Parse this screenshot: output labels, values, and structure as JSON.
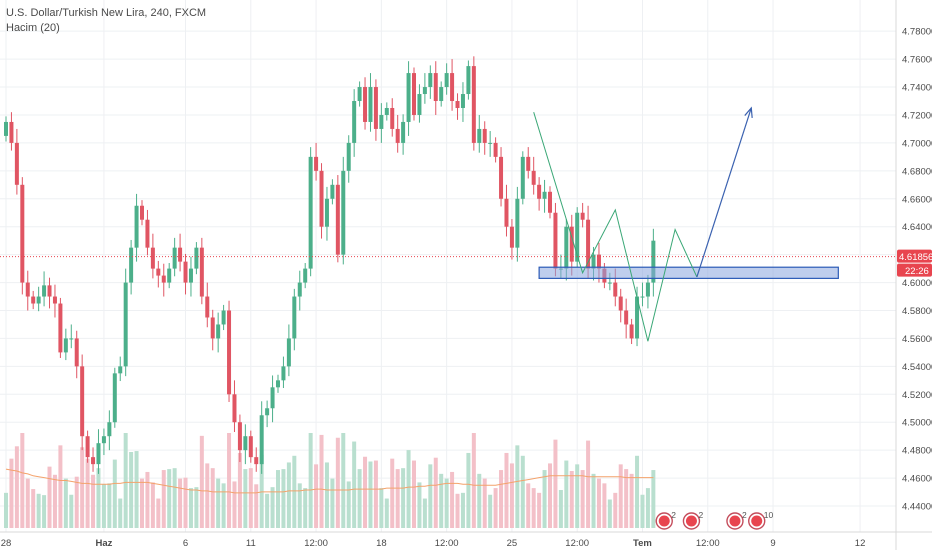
{
  "header": {
    "title": "U.S. Dollar/Turkish New Lira, 240, FXCM",
    "volume_label": "Hacim (20)"
  },
  "chart_data": {
    "type": "candlestick",
    "title": "U.S. Dollar/Turkish New Lira, 240, FXCM",
    "ylim": [
      4.43,
      4.788
    ],
    "y_ticks": [
      4.44,
      4.46,
      4.48,
      4.5,
      4.52,
      4.54,
      4.56,
      4.58,
      4.6,
      4.62,
      4.64,
      4.66,
      4.68,
      4.7,
      4.72,
      4.74,
      4.76,
      4.78
    ],
    "x_ticks": [
      {
        "label": "28",
        "i": 0
      },
      {
        "label": "Haz",
        "i": 18
      },
      {
        "label": "6",
        "i": 33
      },
      {
        "label": "11",
        "i": 45
      },
      {
        "label": "12:00",
        "i": 57
      },
      {
        "label": "18",
        "i": 69
      },
      {
        "label": "12:00",
        "i": 81
      },
      {
        "label": "25",
        "i": 93
      },
      {
        "label": "12:00",
        "i": 105
      },
      {
        "label": "Tem",
        "i": 117
      },
      {
        "label": "12:00",
        "i": 129
      },
      {
        "label": "9",
        "i": 141
      },
      {
        "label": "12",
        "i": 157
      }
    ],
    "current_price": 4.61856,
    "price_tag": "4.61856",
    "countdown_tag": "22:26",
    "volume_ma_label": "Hacim (20)",
    "closes": [
      4.715,
      4.7,
      4.67,
      4.6,
      4.59,
      4.585,
      4.59,
      4.598,
      4.59,
      4.585,
      4.55,
      4.56,
      4.56,
      4.54,
      4.49,
      4.475,
      4.47,
      4.485,
      4.49,
      4.5,
      4.535,
      4.54,
      4.6,
      4.625,
      4.655,
      4.645,
      4.625,
      4.61,
      4.605,
      4.6,
      4.61,
      4.625,
      4.615,
      4.6,
      4.61,
      4.625,
      4.59,
      4.575,
      4.56,
      4.57,
      4.58,
      4.52,
      4.5,
      4.48,
      4.49,
      4.475,
      4.47,
      4.505,
      4.51,
      4.525,
      4.53,
      4.54,
      4.56,
      4.59,
      4.6,
      4.61,
      4.69,
      4.68,
      4.64,
      4.66,
      4.67,
      4.62,
      4.68,
      4.7,
      4.73,
      4.74,
      4.715,
      4.74,
      4.71,
      4.72,
      4.725,
      4.71,
      4.7,
      4.715,
      4.75,
      4.72,
      4.735,
      4.74,
      4.75,
      4.73,
      4.74,
      4.75,
      4.73,
      4.725,
      4.735,
      4.755,
      4.7,
      4.71,
      4.7,
      4.7,
      4.69,
      4.66,
      4.64,
      4.625,
      4.66,
      4.69,
      4.68,
      4.67,
      4.66,
      4.665,
      4.65,
      4.61,
      4.61,
      4.64,
      4.615,
      4.65,
      4.645,
      4.61,
      4.62,
      4.61,
      4.6,
      4.6,
      4.59,
      4.58,
      4.57,
      4.56,
      4.59,
      4.59,
      4.6,
      4.63
    ],
    "volume_ma": [
      0.62,
      0.61,
      0.6,
      0.58,
      0.57,
      0.55,
      0.54,
      0.53,
      0.52,
      0.51,
      0.5,
      0.5,
      0.49,
      0.48,
      0.47,
      0.47,
      0.46,
      0.46,
      0.46,
      0.46,
      0.47,
      0.47,
      0.48,
      0.48,
      0.48,
      0.48,
      0.48,
      0.47,
      0.46,
      0.45,
      0.44,
      0.43,
      0.42,
      0.41,
      0.4,
      0.4,
      0.39,
      0.39,
      0.38,
      0.38,
      0.38,
      0.38,
      0.37,
      0.37,
      0.37,
      0.37,
      0.37,
      0.38,
      0.38,
      0.38,
      0.38,
      0.38,
      0.39,
      0.39,
      0.39,
      0.4,
      0.4,
      0.41,
      0.41,
      0.4,
      0.4,
      0.4,
      0.4,
      0.4,
      0.41,
      0.41,
      0.41,
      0.41,
      0.41,
      0.41,
      0.42,
      0.42,
      0.42,
      0.42,
      0.43,
      0.43,
      0.44,
      0.44,
      0.45,
      0.45,
      0.46,
      0.47,
      0.47,
      0.47,
      0.46,
      0.46,
      0.45,
      0.45,
      0.45,
      0.45,
      0.45,
      0.46,
      0.47,
      0.48,
      0.49,
      0.5,
      0.51,
      0.52,
      0.53,
      0.54,
      0.55,
      0.55,
      0.55,
      0.55,
      0.55,
      0.55,
      0.55,
      0.54,
      0.54,
      0.54,
      0.54,
      0.54,
      0.54,
      0.54,
      0.53,
      0.53,
      0.53,
      0.53,
      0.53,
      0.53
    ],
    "channel_zone": {
      "x_from_i": 98,
      "x_to_i": 153,
      "y_low": 4.603,
      "y_high": 4.611
    },
    "drawn_pattern": [
      {
        "i": 97,
        "y": 4.722
      },
      {
        "i": 106,
        "y": 4.607
      },
      {
        "i": 112,
        "y": 4.652
      },
      {
        "i": 118,
        "y": 4.558
      },
      {
        "i": 123,
        "y": 4.638
      },
      {
        "i": 127,
        "y": 4.604
      }
    ],
    "projection_arrow": [
      {
        "i": 127,
        "y": 4.604
      },
      {
        "i": 137,
        "y": 4.725
      }
    ],
    "event_badges": [
      {
        "i": 121,
        "count": "2"
      },
      {
        "i": 126,
        "count": "2"
      },
      {
        "i": 134,
        "count": "2"
      },
      {
        "i": 138,
        "count": "10"
      }
    ],
    "bull_color": "#4caf8a",
    "bear_color": "#e05563",
    "vol_bull_color": "#b9dfcf",
    "vol_bear_color": "#f3c0c8",
    "ma_color": "#f4a26b",
    "zone_color": "#2c5bb7",
    "pattern_color": "#3aa776",
    "arrow_color": "#3b62b0",
    "price_tag_color": "#e8454f",
    "grid": true
  }
}
